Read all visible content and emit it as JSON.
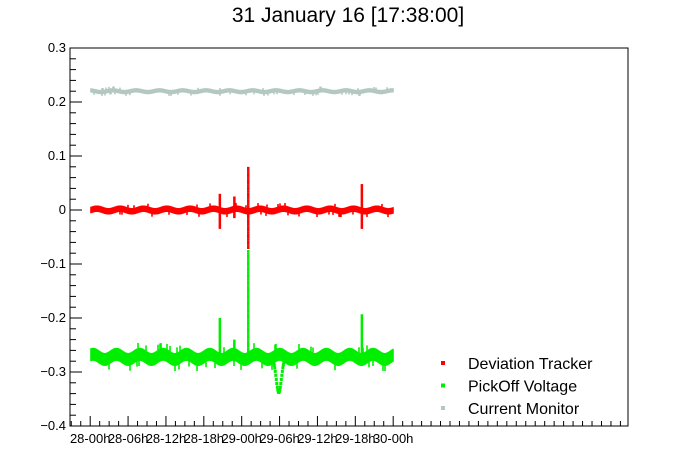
{
  "chart_data": {
    "type": "scatter",
    "title": "31 January 16 [17:38:00]",
    "xlabel": "",
    "ylabel": "",
    "ylim": [
      -0.4,
      0.3
    ],
    "xlim_hours": [
      -3.2,
      85.2
    ],
    "x_ticks": [
      {
        "label": "28-00h",
        "hour": 0
      },
      {
        "label": "28-06h",
        "hour": 6
      },
      {
        "label": "28-12h",
        "hour": 12
      },
      {
        "label": "28-18h",
        "hour": 18
      },
      {
        "label": "29-00h",
        "hour": 24
      },
      {
        "label": "29-06h",
        "hour": 30
      },
      {
        "label": "29-12h",
        "hour": 36
      },
      {
        "label": "29-18h",
        "hour": 42
      },
      {
        "label": "30-00h",
        "hour": 48
      }
    ],
    "y_ticks": [
      {
        "label": "0.3",
        "value": 0.3
      },
      {
        "label": "0.2",
        "value": 0.2
      },
      {
        "label": "0.1",
        "value": 0.1
      },
      {
        "label": "0",
        "value": 0.0
      },
      {
        "label": "−0.1",
        "value": -0.1
      },
      {
        "label": "−0.2",
        "value": -0.2
      },
      {
        "label": "−0.3",
        "value": -0.3
      },
      {
        "label": "−0.4",
        "value": -0.4
      }
    ],
    "legend_position": "bottom-right",
    "grid": false,
    "series": [
      {
        "name": "Deviation Tracker",
        "color": "#ff0000",
        "baseline": 0.0,
        "spread": 0.006,
        "features": [
          {
            "hour": 20.5,
            "min": -0.035,
            "max": 0.03
          },
          {
            "hour": 22.8,
            "min": -0.015,
            "max": 0.025
          },
          {
            "hour": 25.0,
            "min": -0.07,
            "max": 0.08
          },
          {
            "hour": 43.0,
            "min": -0.035,
            "max": 0.048
          }
        ],
        "points": [
          [
            0,
            0.001
          ],
          [
            4,
            0.0
          ],
          [
            8,
            0.002
          ],
          [
            12,
            0.0
          ],
          [
            16,
            0.001
          ],
          [
            20.5,
            0.03
          ],
          [
            20.5,
            -0.035
          ],
          [
            22.8,
            0.025
          ],
          [
            25.0,
            0.08
          ],
          [
            25.0,
            -0.07
          ],
          [
            30,
            0.001
          ],
          [
            36,
            0.0
          ],
          [
            43.0,
            0.048
          ],
          [
            43.0,
            -0.035
          ],
          [
            48,
            0.0
          ]
        ]
      },
      {
        "name": "PickOff Voltage",
        "color": "#00ee00",
        "baseline": -0.272,
        "spread": 0.012,
        "features": [
          {
            "hour": 20.5,
            "min": -0.28,
            "max": -0.2
          },
          {
            "hour": 22.8,
            "min": -0.28,
            "max": -0.24
          },
          {
            "hour": 25.0,
            "min": -0.28,
            "max": -0.075
          },
          {
            "hour": 29.8,
            "min": -0.338,
            "max": -0.28
          },
          {
            "hour": 43.0,
            "min": -0.28,
            "max": -0.193
          }
        ],
        "points": [
          [
            0,
            -0.275
          ],
          [
            6,
            -0.27
          ],
          [
            12,
            -0.272
          ],
          [
            18,
            -0.27
          ],
          [
            20.5,
            -0.2
          ],
          [
            22.8,
            -0.24
          ],
          [
            25.0,
            -0.075
          ],
          [
            29.8,
            -0.338
          ],
          [
            36,
            -0.27
          ],
          [
            43.0,
            -0.193
          ],
          [
            48,
            -0.27
          ]
        ]
      },
      {
        "name": "Current Monitor",
        "color": "#b4c8c2",
        "baseline": 0.22,
        "spread": 0.004,
        "features": [],
        "points": [
          [
            0,
            0.219
          ],
          [
            6,
            0.221
          ],
          [
            12,
            0.219
          ],
          [
            18,
            0.218
          ],
          [
            24,
            0.22
          ],
          [
            30,
            0.219
          ],
          [
            36,
            0.22
          ],
          [
            42,
            0.218
          ],
          [
            48,
            0.218
          ]
        ]
      }
    ]
  }
}
